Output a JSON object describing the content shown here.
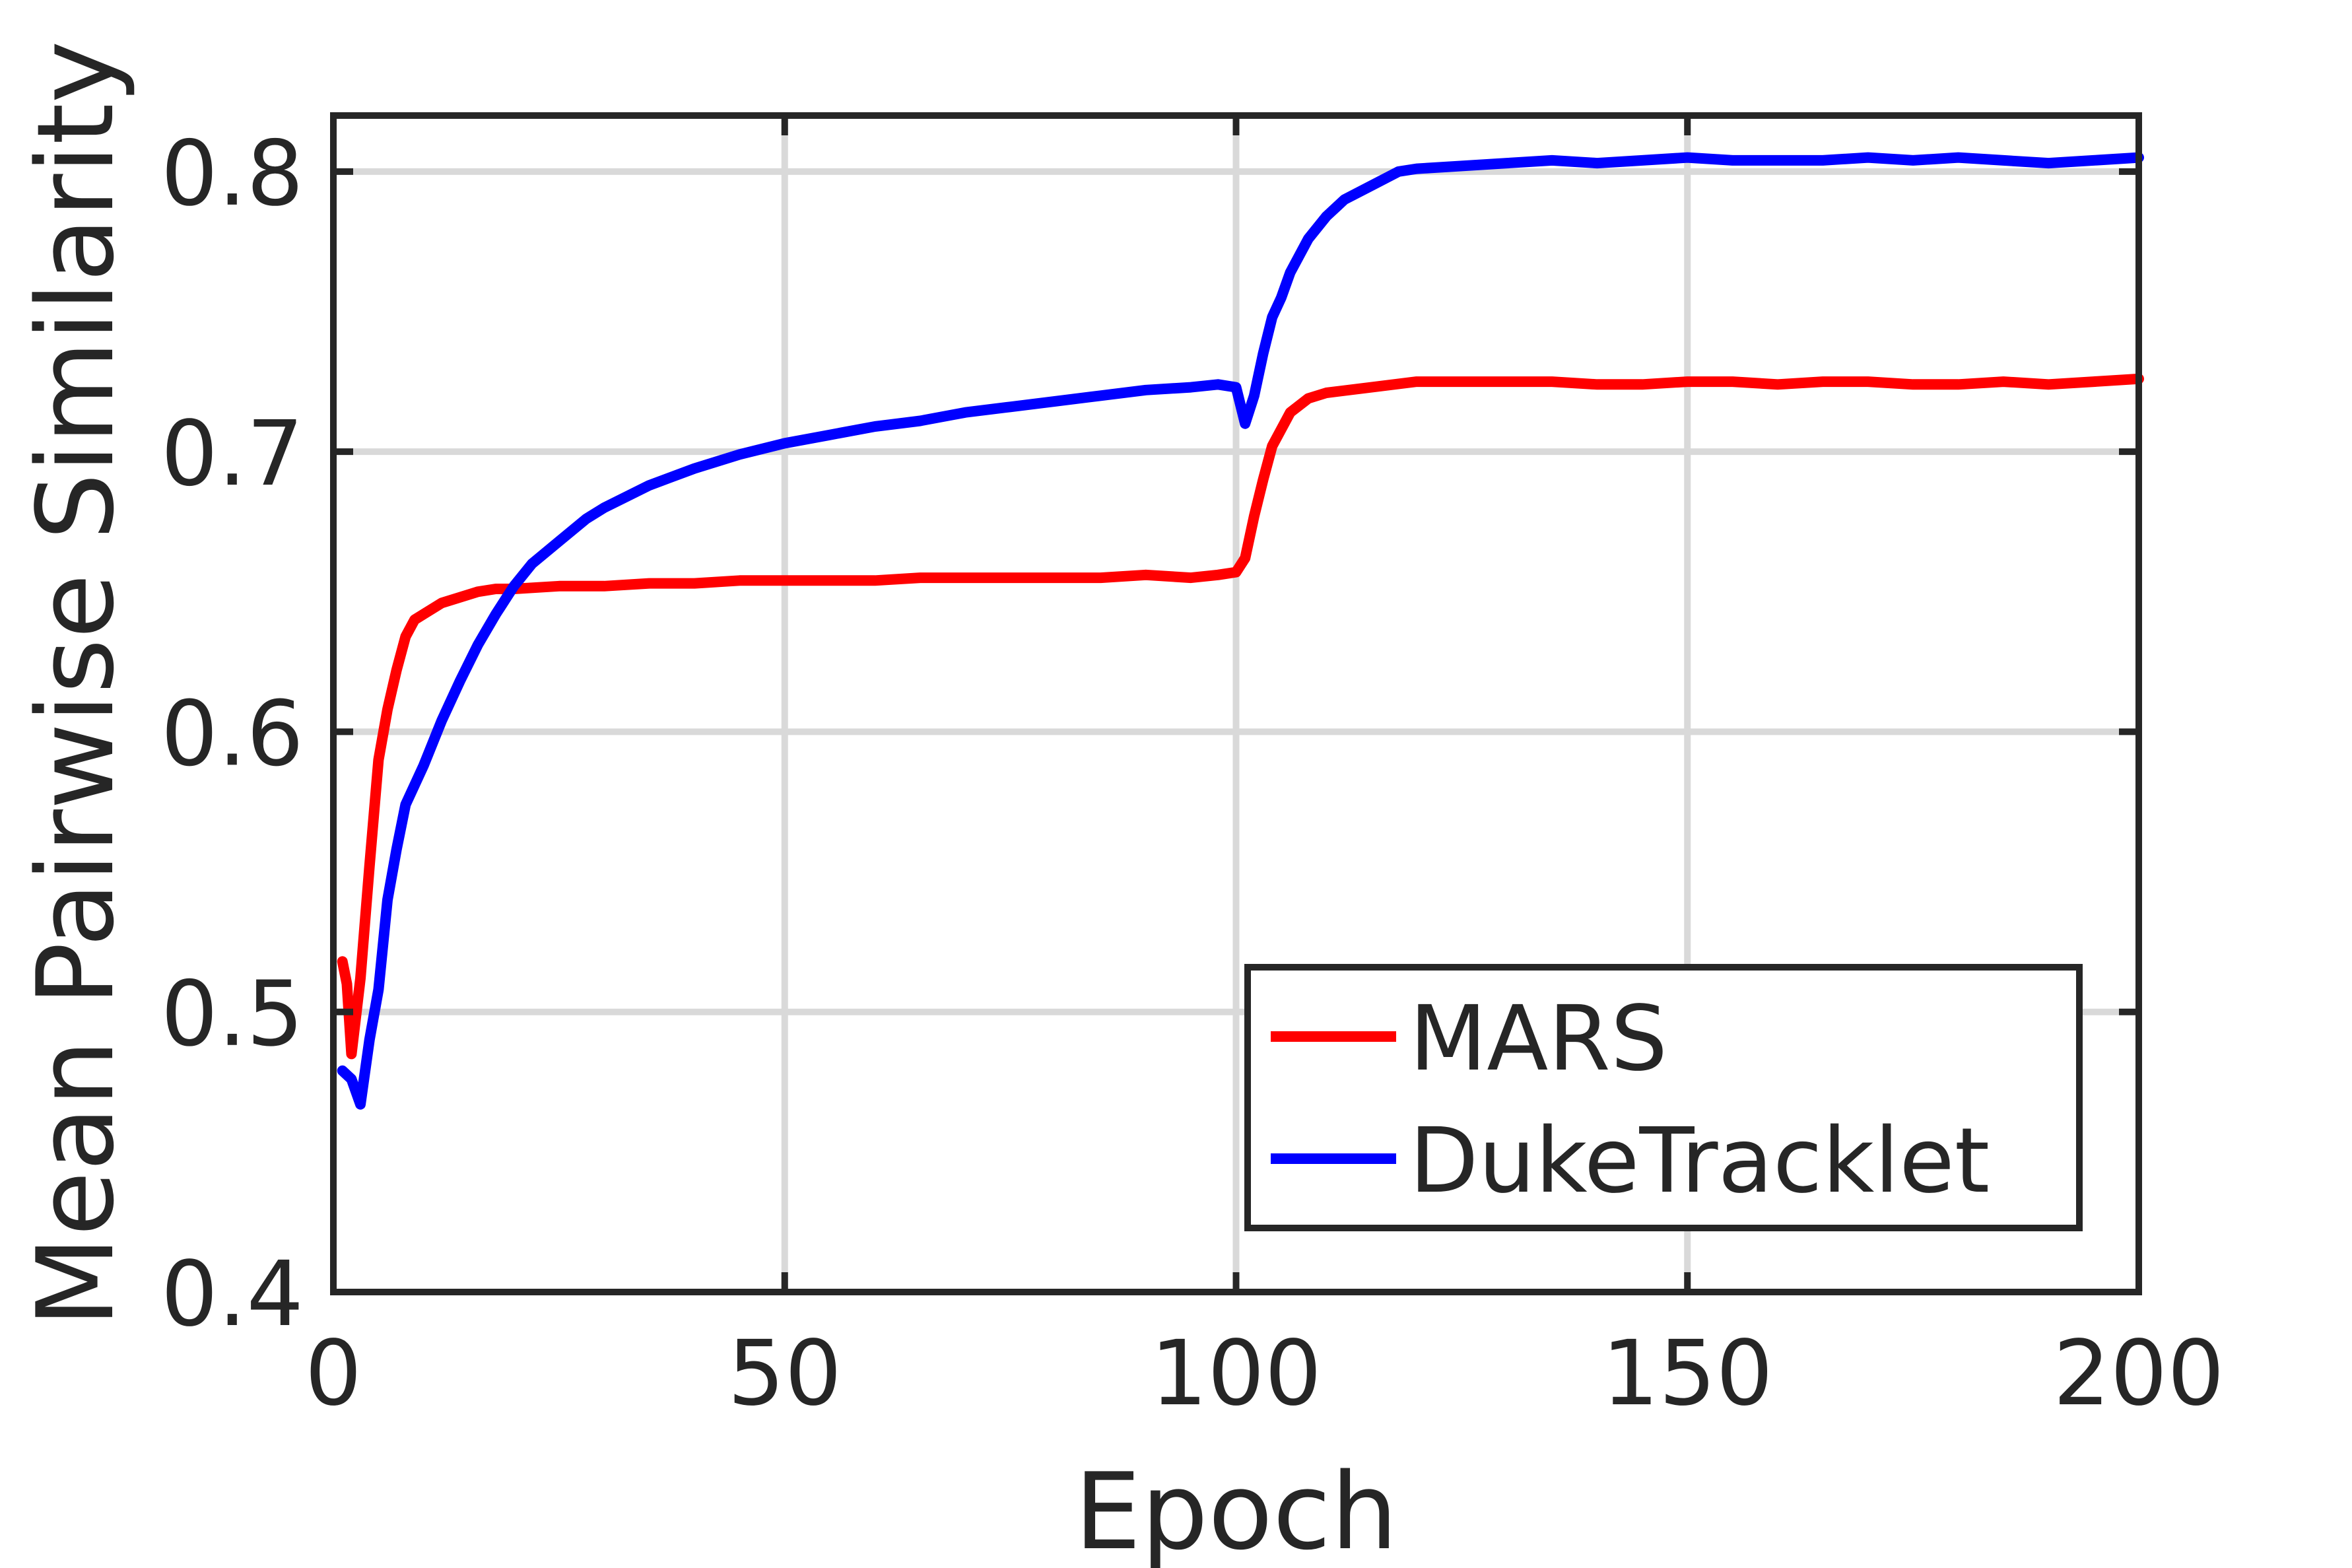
{
  "chart_data": {
    "type": "line",
    "title": "",
    "xlabel": "Epoch",
    "ylabel": "Mean Pairwise Similarity",
    "xlim": [
      0,
      200
    ],
    "ylim": [
      0.4,
      0.82
    ],
    "xticks": [
      0,
      50,
      100,
      150,
      200
    ],
    "xtick_labels": [
      "0",
      "50",
      "100",
      "150",
      "200"
    ],
    "yticks": [
      0.4,
      0.5,
      0.6,
      0.7,
      0.8
    ],
    "ytick_labels": [
      "0.4",
      "0.5",
      "0.6",
      "0.7",
      "0.8"
    ],
    "grid": true,
    "legend_position": "bottom-right",
    "series": [
      {
        "name": "MARS",
        "color": "#ff0000",
        "x": [
          1,
          1.5,
          2,
          3,
          4,
          5,
          6,
          7,
          8,
          9,
          10,
          12,
          14,
          16,
          18,
          20,
          25,
          30,
          35,
          40,
          45,
          50,
          55,
          60,
          65,
          70,
          75,
          80,
          85,
          90,
          95,
          98,
          100,
          101,
          102,
          103,
          104,
          106,
          108,
          110,
          115,
          120,
          125,
          130,
          135,
          140,
          145,
          150,
          155,
          160,
          165,
          170,
          175,
          180,
          185,
          190,
          195,
          200
        ],
        "y": [
          0.518,
          0.51,
          0.485,
          0.512,
          0.552,
          0.59,
          0.608,
          0.622,
          0.634,
          0.64,
          0.642,
          0.646,
          0.648,
          0.65,
          0.651,
          0.651,
          0.652,
          0.652,
          0.653,
          0.653,
          0.654,
          0.654,
          0.654,
          0.654,
          0.655,
          0.655,
          0.655,
          0.655,
          0.655,
          0.656,
          0.655,
          0.656,
          0.657,
          0.662,
          0.677,
          0.69,
          0.702,
          0.714,
          0.719,
          0.721,
          0.723,
          0.725,
          0.725,
          0.725,
          0.725,
          0.724,
          0.724,
          0.725,
          0.725,
          0.724,
          0.725,
          0.725,
          0.724,
          0.724,
          0.725,
          0.724,
          0.725,
          0.726
        ]
      },
      {
        "name": "DukeTracklet",
        "color": "#0000ff",
        "x": [
          1,
          2,
          3,
          4,
          5,
          6,
          7,
          8,
          10,
          12,
          14,
          16,
          18,
          20,
          22,
          25,
          28,
          30,
          35,
          40,
          45,
          50,
          55,
          60,
          65,
          70,
          75,
          80,
          85,
          90,
          95,
          98,
          100,
          101,
          102,
          103,
          104,
          105,
          106,
          108,
          110,
          112,
          115,
          118,
          120,
          125,
          130,
          135,
          140,
          145,
          150,
          155,
          160,
          165,
          170,
          175,
          180,
          185,
          190,
          195,
          200
        ],
        "y": [
          0.479,
          0.476,
          0.467,
          0.49,
          0.508,
          0.54,
          0.558,
          0.574,
          0.588,
          0.604,
          0.618,
          0.631,
          0.642,
          0.652,
          0.66,
          0.668,
          0.676,
          0.68,
          0.688,
          0.694,
          0.699,
          0.703,
          0.706,
          0.709,
          0.711,
          0.714,
          0.716,
          0.718,
          0.72,
          0.722,
          0.723,
          0.724,
          0.723,
          0.71,
          0.72,
          0.735,
          0.748,
          0.755,
          0.764,
          0.776,
          0.784,
          0.79,
          0.795,
          0.8,
          0.801,
          0.802,
          0.803,
          0.804,
          0.803,
          0.804,
          0.805,
          0.804,
          0.804,
          0.804,
          0.805,
          0.804,
          0.805,
          0.804,
          0.803,
          0.804,
          0.805
        ]
      }
    ]
  }
}
